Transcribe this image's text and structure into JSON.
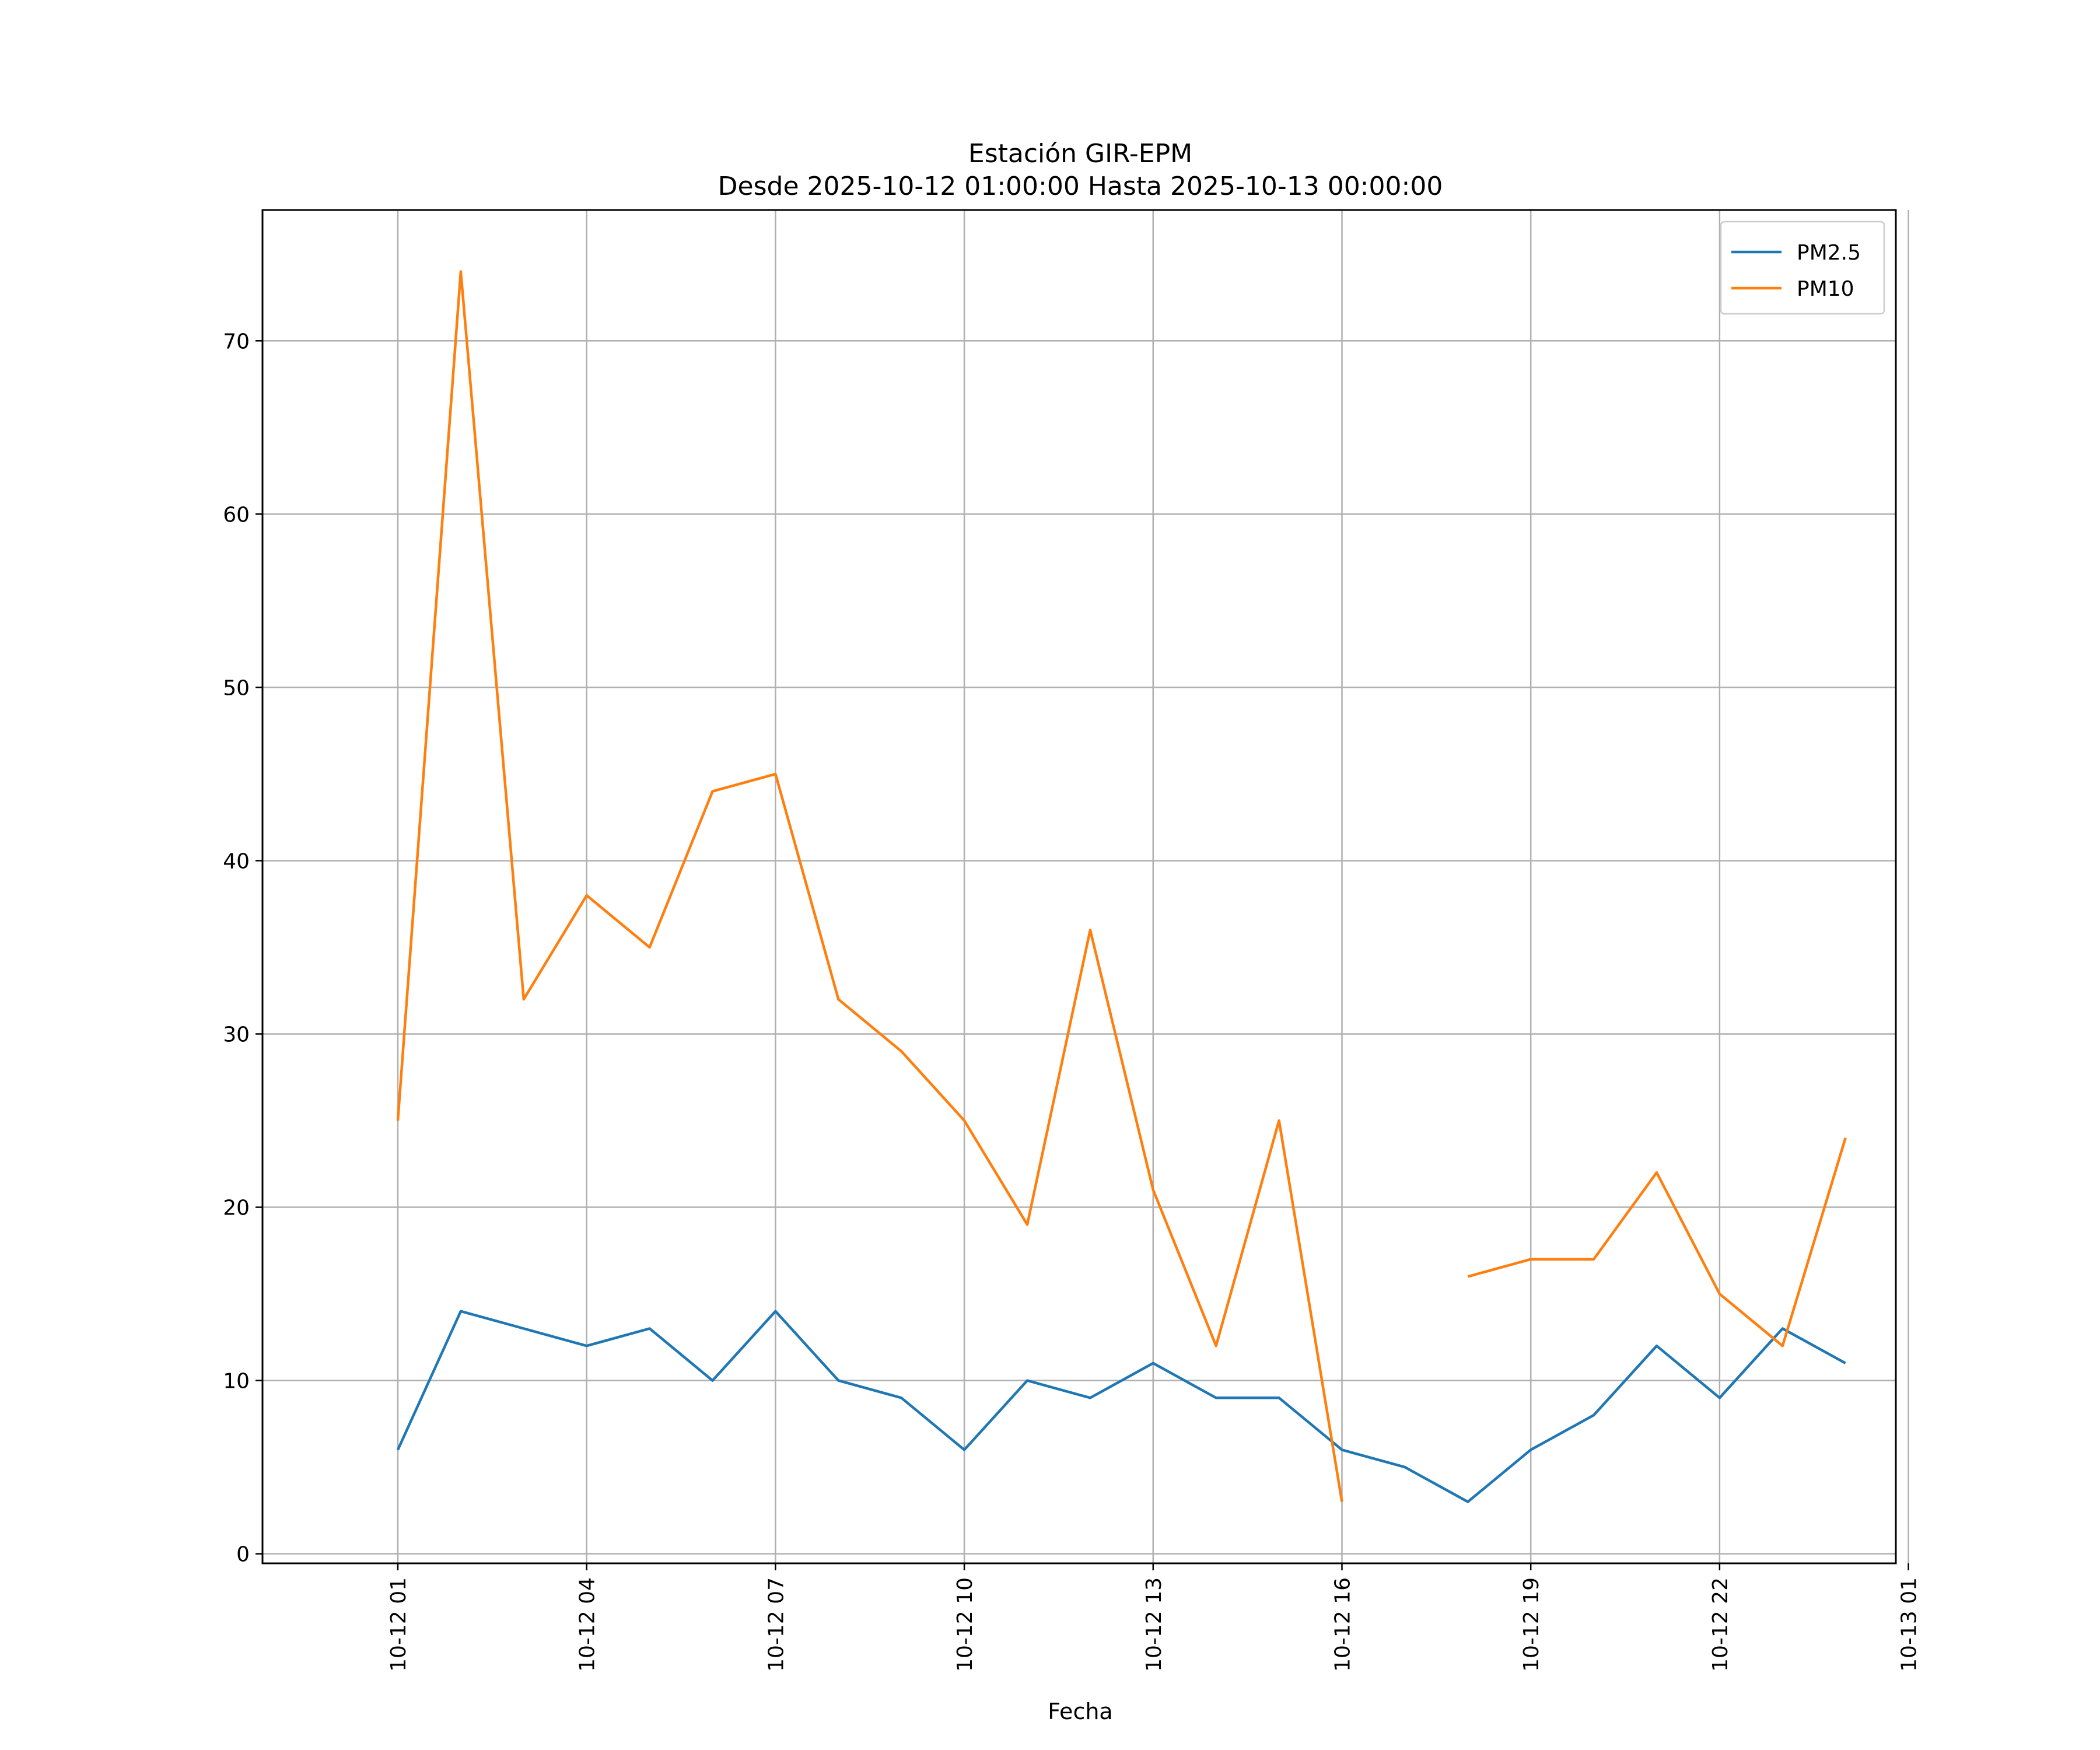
{
  "chart_data": {
    "type": "line",
    "title": "Estación GIR-EPM",
    "subtitle": "Desde 2025-10-12 01:00:00 Hasta 2025-10-13 00:00:00",
    "xlabel": "Fecha",
    "ylabel": "",
    "x": [
      "2025-10-12 01:00",
      "2025-10-12 02:00",
      "2025-10-12 03:00",
      "2025-10-12 04:00",
      "2025-10-12 05:00",
      "2025-10-12 06:00",
      "2025-10-12 07:00",
      "2025-10-12 08:00",
      "2025-10-12 09:00",
      "2025-10-12 10:00",
      "2025-10-12 11:00",
      "2025-10-12 12:00",
      "2025-10-12 13:00",
      "2025-10-12 14:00",
      "2025-10-12 15:00",
      "2025-10-12 16:00",
      "2025-10-12 17:00",
      "2025-10-12 18:00",
      "2025-10-12 19:00",
      "2025-10-12 20:00",
      "2025-10-12 21:00",
      "2025-10-12 22:00",
      "2025-10-12 23:00",
      "2025-10-13 00:00"
    ],
    "series": [
      {
        "name": "PM2.5",
        "color": "#1f77b4",
        "values": [
          6,
          14,
          13,
          12,
          13,
          10,
          14,
          10,
          9,
          6,
          10,
          9,
          11,
          9,
          9,
          6,
          5,
          3,
          6,
          8,
          12,
          9,
          13,
          11
        ]
      },
      {
        "name": "PM10",
        "color": "#ff7f0e",
        "values": [
          25,
          74,
          32,
          38,
          35,
          44,
          45,
          32,
          29,
          25,
          19,
          36,
          21,
          12,
          25,
          3,
          null,
          16,
          17,
          17,
          22,
          15,
          12,
          24
        ]
      }
    ],
    "xticks": [
      "10-12 01",
      "10-12 04",
      "10-12 07",
      "10-12 10",
      "10-12 13",
      "10-12 16",
      "10-12 19",
      "10-12 22",
      "10-13 01"
    ],
    "xlim": [
      "2025-10-11 22:51",
      "2025-10-13 00:48"
    ],
    "yticks": [
      0,
      10,
      20,
      30,
      40,
      50,
      60,
      70
    ],
    "ylim": [
      -0.55,
      77.55
    ],
    "grid": true,
    "legend": "top-right"
  }
}
